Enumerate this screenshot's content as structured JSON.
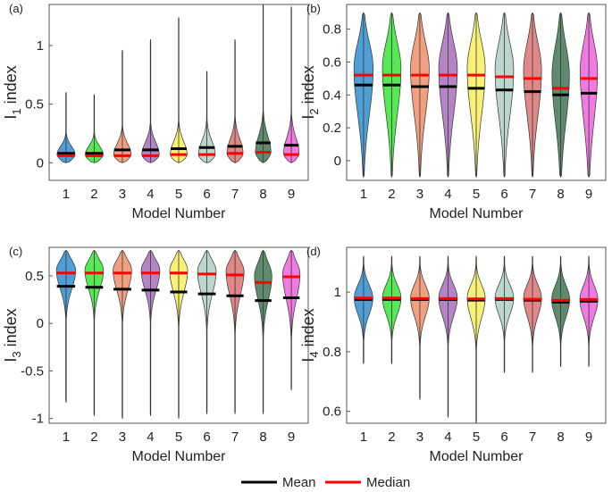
{
  "figure": {
    "legend": {
      "mean_label": "Mean",
      "median_label": "Median",
      "mean_color": "#000000",
      "median_color": "#ff0000"
    }
  },
  "chart_data": [
    {
      "type": "violin",
      "panel_label": "(a)",
      "ylabel": "I",
      "ylabel_sub": "1",
      "ylabel_suffix": " index",
      "xlabel": "Model Number",
      "categories": [
        "1",
        "2",
        "3",
        "4",
        "5",
        "6",
        "7",
        "8",
        "9"
      ],
      "ylim": [
        -0.15,
        1.35
      ],
      "yticks": [
        0,
        0.5,
        1
      ],
      "ytick_labels": [
        "0",
        "0.5",
        "1"
      ],
      "series": [
        {
          "name": "1",
          "color": "#4f9fd6",
          "mean": 0.08,
          "median": 0.06,
          "min": 0.0,
          "max": 0.6,
          "bulk_lo": -0.01,
          "bulk_hi": 0.2,
          "peak": 0.07,
          "width": 0.58
        },
        {
          "name": "2",
          "color": "#55ea55",
          "mean": 0.08,
          "median": 0.06,
          "min": 0.0,
          "max": 0.58,
          "bulk_lo": -0.01,
          "bulk_hi": 0.2,
          "peak": 0.07,
          "width": 0.58
        },
        {
          "name": "3",
          "color": "#f0a080",
          "mean": 0.11,
          "median": 0.06,
          "min": 0.0,
          "max": 0.96,
          "bulk_lo": -0.01,
          "bulk_hi": 0.24,
          "peak": 0.07,
          "width": 0.56
        },
        {
          "name": "4",
          "color": "#b584c5",
          "mean": 0.11,
          "median": 0.06,
          "min": 0.0,
          "max": 1.05,
          "bulk_lo": -0.01,
          "bulk_hi": 0.26,
          "peak": 0.07,
          "width": 0.56
        },
        {
          "name": "5",
          "color": "#f8f077",
          "mean": 0.12,
          "median": 0.07,
          "min": 0.0,
          "max": 1.24,
          "bulk_lo": -0.01,
          "bulk_hi": 0.27,
          "peak": 0.07,
          "width": 0.54
        },
        {
          "name": "6",
          "color": "#bcd6cc",
          "mean": 0.13,
          "median": 0.07,
          "min": 0.0,
          "max": 0.78,
          "bulk_lo": -0.01,
          "bulk_hi": 0.28,
          "peak": 0.07,
          "width": 0.54
        },
        {
          "name": "7",
          "color": "#e08888",
          "mean": 0.14,
          "median": 0.08,
          "min": 0.0,
          "max": 1.05,
          "bulk_lo": -0.01,
          "bulk_hi": 0.3,
          "peak": 0.08,
          "width": 0.52
        },
        {
          "name": "8",
          "color": "#5e8a6e",
          "mean": 0.17,
          "median": 0.09,
          "min": 0.0,
          "max": 1.35,
          "bulk_lo": -0.01,
          "bulk_hi": 0.34,
          "peak": 0.09,
          "width": 0.5
        },
        {
          "name": "9",
          "color": "#f07ae0",
          "mean": 0.15,
          "median": 0.07,
          "min": 0.0,
          "max": 1.33,
          "bulk_lo": -0.01,
          "bulk_hi": 0.32,
          "peak": 0.08,
          "width": 0.5
        }
      ]
    },
    {
      "type": "violin",
      "panel_label": "(b)",
      "ylabel": "I",
      "ylabel_sub": "2",
      "ylabel_suffix": " index",
      "xlabel": "Model Number",
      "categories": [
        "1",
        "2",
        "3",
        "4",
        "5",
        "6",
        "7",
        "8",
        "9"
      ],
      "ylim": [
        -0.12,
        0.95
      ],
      "yticks": [
        0,
        0.2,
        0.4,
        0.6,
        0.8
      ],
      "ytick_labels": [
        "0",
        "0.2",
        "0.4",
        "0.6",
        "0.8"
      ],
      "series": [
        {
          "name": "1",
          "color": "#4f9fd6",
          "mean": 0.46,
          "median": 0.52,
          "min": -0.1,
          "max": 0.9,
          "bulk_lo": 0.05,
          "bulk_hi": 0.85,
          "peak": 0.56,
          "width": 0.62
        },
        {
          "name": "2",
          "color": "#55ea55",
          "mean": 0.46,
          "median": 0.52,
          "min": -0.1,
          "max": 0.9,
          "bulk_lo": 0.05,
          "bulk_hi": 0.85,
          "peak": 0.56,
          "width": 0.6
        },
        {
          "name": "3",
          "color": "#f0a080",
          "mean": 0.45,
          "median": 0.52,
          "min": -0.1,
          "max": 0.9,
          "bulk_lo": 0.05,
          "bulk_hi": 0.85,
          "peak": 0.56,
          "width": 0.6
        },
        {
          "name": "4",
          "color": "#b584c5",
          "mean": 0.45,
          "median": 0.52,
          "min": -0.1,
          "max": 0.9,
          "bulk_lo": 0.05,
          "bulk_hi": 0.85,
          "peak": 0.56,
          "width": 0.6
        },
        {
          "name": "5",
          "color": "#f8f077",
          "mean": 0.44,
          "median": 0.52,
          "min": -0.1,
          "max": 0.9,
          "bulk_lo": 0.05,
          "bulk_hi": 0.85,
          "peak": 0.56,
          "width": 0.58
        },
        {
          "name": "6",
          "color": "#bcd6cc",
          "mean": 0.43,
          "median": 0.51,
          "min": -0.1,
          "max": 0.9,
          "bulk_lo": 0.05,
          "bulk_hi": 0.85,
          "peak": 0.55,
          "width": 0.6
        },
        {
          "name": "7",
          "color": "#e08888",
          "mean": 0.42,
          "median": 0.5,
          "min": -0.1,
          "max": 0.9,
          "bulk_lo": 0.05,
          "bulk_hi": 0.85,
          "peak": 0.55,
          "width": 0.58
        },
        {
          "name": "8",
          "color": "#5e8a6e",
          "mean": 0.4,
          "median": 0.44,
          "min": -0.1,
          "max": 0.9,
          "bulk_lo": 0.0,
          "bulk_hi": 0.85,
          "peak": 0.52,
          "width": 0.56
        },
        {
          "name": "9",
          "color": "#f07ae0",
          "mean": 0.41,
          "median": 0.5,
          "min": -0.1,
          "max": 0.9,
          "bulk_lo": 0.0,
          "bulk_hi": 0.85,
          "peak": 0.55,
          "width": 0.56
        }
      ]
    },
    {
      "type": "violin",
      "panel_label": "(c)",
      "ylabel": "I",
      "ylabel_sub": "3",
      "ylabel_suffix": " index",
      "xlabel": "Model Number",
      "categories": [
        "1",
        "2",
        "3",
        "4",
        "5",
        "6",
        "7",
        "8",
        "9"
      ],
      "ylim": [
        -1.05,
        0.8
      ],
      "yticks": [
        -1,
        -0.5,
        0,
        0.5
      ],
      "ytick_labels": [
        "-1",
        "-0.5",
        "0",
        "0.5"
      ],
      "series": [
        {
          "name": "1",
          "color": "#4f9fd6",
          "mean": 0.39,
          "median": 0.53,
          "min": -0.83,
          "max": 0.77,
          "bulk_lo": 0.2,
          "bulk_hi": 0.75,
          "peak": 0.56,
          "width": 0.62
        },
        {
          "name": "2",
          "color": "#55ea55",
          "mean": 0.38,
          "median": 0.53,
          "min": -0.97,
          "max": 0.77,
          "bulk_lo": 0.2,
          "bulk_hi": 0.75,
          "peak": 0.56,
          "width": 0.6
        },
        {
          "name": "3",
          "color": "#f0a080",
          "mean": 0.36,
          "median": 0.53,
          "min": -1.0,
          "max": 0.77,
          "bulk_lo": 0.18,
          "bulk_hi": 0.75,
          "peak": 0.56,
          "width": 0.6
        },
        {
          "name": "4",
          "color": "#b584c5",
          "mean": 0.35,
          "median": 0.53,
          "min": -0.97,
          "max": 0.77,
          "bulk_lo": 0.18,
          "bulk_hi": 0.75,
          "peak": 0.56,
          "width": 0.6
        },
        {
          "name": "5",
          "color": "#f8f077",
          "mean": 0.33,
          "median": 0.53,
          "min": -1.0,
          "max": 0.77,
          "bulk_lo": 0.15,
          "bulk_hi": 0.75,
          "peak": 0.56,
          "width": 0.58
        },
        {
          "name": "6",
          "color": "#bcd6cc",
          "mean": 0.31,
          "median": 0.52,
          "min": -0.95,
          "max": 0.77,
          "bulk_lo": 0.12,
          "bulk_hi": 0.75,
          "peak": 0.55,
          "width": 0.6
        },
        {
          "name": "7",
          "color": "#e08888",
          "mean": 0.29,
          "median": 0.51,
          "min": -0.95,
          "max": 0.77,
          "bulk_lo": 0.1,
          "bulk_hi": 0.75,
          "peak": 0.55,
          "width": 0.58
        },
        {
          "name": "8",
          "color": "#5e8a6e",
          "mean": 0.24,
          "median": 0.43,
          "min": -0.95,
          "max": 0.77,
          "bulk_lo": 0.05,
          "bulk_hi": 0.75,
          "peak": 0.5,
          "width": 0.56
        },
        {
          "name": "9",
          "color": "#f07ae0",
          "mean": 0.27,
          "median": 0.49,
          "min": -0.7,
          "max": 0.77,
          "bulk_lo": 0.05,
          "bulk_hi": 0.75,
          "peak": 0.52,
          "width": 0.56
        }
      ]
    },
    {
      "type": "violin",
      "panel_label": "(d)",
      "ylabel": "I",
      "ylabel_sub": "4",
      "ylabel_suffix": " index",
      "xlabel": "Model Number",
      "categories": [
        "1",
        "2",
        "3",
        "4",
        "5",
        "6",
        "7",
        "8",
        "9"
      ],
      "ylim": [
        0.56,
        1.15
      ],
      "yticks": [
        0.6,
        0.8,
        1
      ],
      "ytick_labels": [
        "0.6",
        "0.8",
        "1"
      ],
      "series": [
        {
          "name": "1",
          "color": "#4f9fd6",
          "mean": 0.975,
          "median": 0.98,
          "min": 0.76,
          "max": 1.12,
          "bulk_lo": 0.88,
          "bulk_hi": 1.06,
          "peak": 0.98,
          "width": 0.6
        },
        {
          "name": "2",
          "color": "#55ea55",
          "mean": 0.975,
          "median": 0.98,
          "min": 0.76,
          "max": 1.12,
          "bulk_lo": 0.88,
          "bulk_hi": 1.06,
          "peak": 0.98,
          "width": 0.6
        },
        {
          "name": "3",
          "color": "#f0a080",
          "mean": 0.975,
          "median": 0.978,
          "min": 0.64,
          "max": 1.12,
          "bulk_lo": 0.87,
          "bulk_hi": 1.06,
          "peak": 0.98,
          "width": 0.6
        },
        {
          "name": "4",
          "color": "#b584c5",
          "mean": 0.975,
          "median": 0.978,
          "min": 0.58,
          "max": 1.12,
          "bulk_lo": 0.87,
          "bulk_hi": 1.06,
          "peak": 0.98,
          "width": 0.6
        },
        {
          "name": "5",
          "color": "#f8f077",
          "mean": 0.973,
          "median": 0.977,
          "min": 0.56,
          "max": 1.12,
          "bulk_lo": 0.86,
          "bulk_hi": 1.06,
          "peak": 0.98,
          "width": 0.58
        },
        {
          "name": "6",
          "color": "#bcd6cc",
          "mean": 0.975,
          "median": 0.978,
          "min": 0.73,
          "max": 1.12,
          "bulk_lo": 0.88,
          "bulk_hi": 1.06,
          "peak": 0.98,
          "width": 0.6
        },
        {
          "name": "7",
          "color": "#e08888",
          "mean": 0.973,
          "median": 0.976,
          "min": 0.73,
          "max": 1.12,
          "bulk_lo": 0.87,
          "bulk_hi": 1.06,
          "peak": 0.98,
          "width": 0.58
        },
        {
          "name": "8",
          "color": "#5e8a6e",
          "mean": 0.966,
          "median": 0.972,
          "min": 0.75,
          "max": 1.12,
          "bulk_lo": 0.87,
          "bulk_hi": 1.06,
          "peak": 0.975,
          "width": 0.58
        },
        {
          "name": "9",
          "color": "#f07ae0",
          "mean": 0.969,
          "median": 0.975,
          "min": 0.75,
          "max": 1.12,
          "bulk_lo": 0.87,
          "bulk_hi": 1.06,
          "peak": 0.975,
          "width": 0.58
        }
      ]
    }
  ]
}
